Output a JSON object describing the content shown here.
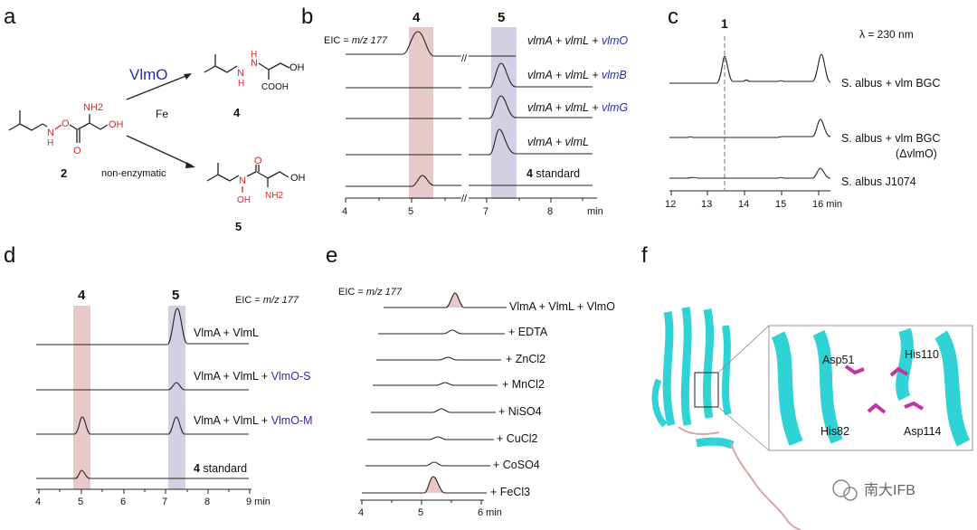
{
  "colors": {
    "accent_blue": "#2b2bb0",
    "heteroatom_red": "#d8262a",
    "band_pink": "#e8c9c9",
    "band_purple": "#d4d0e3",
    "helix_cyan": "#2fd3d6",
    "side_chain_magenta": "#c2349f"
  },
  "panels": {
    "a": {
      "letter": "a",
      "enzyme": "VlmO",
      "cofactor": "Fe",
      "route2": "non-enzymatic",
      "compounds": {
        "c2": {
          "number": "2",
          "atoms": {
            "n": "N",
            "h": "H",
            "o1": "O",
            "o2": "O",
            "nh2": "NH2",
            "oh": "OH"
          }
        },
        "c4": {
          "number": "4",
          "atoms": {
            "n1": "N",
            "h1": "H",
            "n2": "N",
            "h2": "H",
            "cooh": "COOH",
            "oh": "OH"
          }
        },
        "c5": {
          "number": "5",
          "atoms": {
            "n": "N",
            "oh_n": "OH",
            "o": "O",
            "nh2": "NH2",
            "oh": "OH"
          }
        }
      }
    },
    "b": {
      "letter": "b",
      "eic_prefix": "EIC = ",
      "eic_value": "m/z 177",
      "band_labels": [
        "4",
        "5"
      ],
      "traces": [
        {
          "prefix": "vlmA + vlmL + ",
          "highlight": "vlmO",
          "peak": "4"
        },
        {
          "prefix": "vlmA + vlmL + ",
          "highlight": "vlmB",
          "peak": "5"
        },
        {
          "prefix": "vlmA + vlmL + ",
          "highlight": "vlmG",
          "peak": "5"
        },
        {
          "prefix": "vlmA + vlmL",
          "highlight": "",
          "peak": "5"
        },
        {
          "prefix": "4",
          "highlight": " standard",
          "peak": "4small"
        }
      ],
      "x_ticks": [
        "4",
        "5",
        "7",
        "8"
      ],
      "x_unit": "min"
    },
    "c": {
      "letter": "c",
      "peak_label": "1",
      "wavelength": "λ = 230 nm",
      "traces": [
        {
          "line1": "S. albus + vlm BGC",
          "line2": ""
        },
        {
          "line1": "S. albus + vlm BGC",
          "line2": "(ΔvlmO)"
        },
        {
          "line1": "S. albus  J1074",
          "line2": ""
        }
      ],
      "x_ticks": [
        "12",
        "13",
        "14",
        "15",
        "16 min"
      ]
    },
    "d": {
      "letter": "d",
      "eic_prefix": "EIC = ",
      "eic_value": "m/z 177",
      "band_labels": [
        "4",
        "5"
      ],
      "traces": [
        {
          "prefix": "VlmA + VlmL",
          "highlight": ""
        },
        {
          "prefix": "VlmA + VlmL + ",
          "highlight": "VlmO-S"
        },
        {
          "prefix": "VlmA + VlmL + ",
          "highlight": "VlmO-M"
        },
        {
          "prefix": "4",
          "highlight": " standard"
        }
      ],
      "x_ticks": [
        "4",
        "5",
        "6",
        "7",
        "8",
        "9 min"
      ]
    },
    "e": {
      "letter": "e",
      "eic_prefix": "EIC = ",
      "eic_value": "m/z 177",
      "traces": [
        "VlmA + VlmL + VlmO",
        "+ EDTA",
        "+ ZnCl2",
        "+ MnCl2",
        "+ NiSO4",
        "+ CuCl2",
        "+ CoSO4",
        "+ FeCl3"
      ],
      "x_ticks": [
        "4",
        "5",
        "6 min"
      ]
    },
    "f": {
      "letter": "f",
      "residues": [
        "Asp51",
        "His110",
        "His82",
        "Asp114"
      ]
    }
  },
  "watermark": "南大IFB"
}
